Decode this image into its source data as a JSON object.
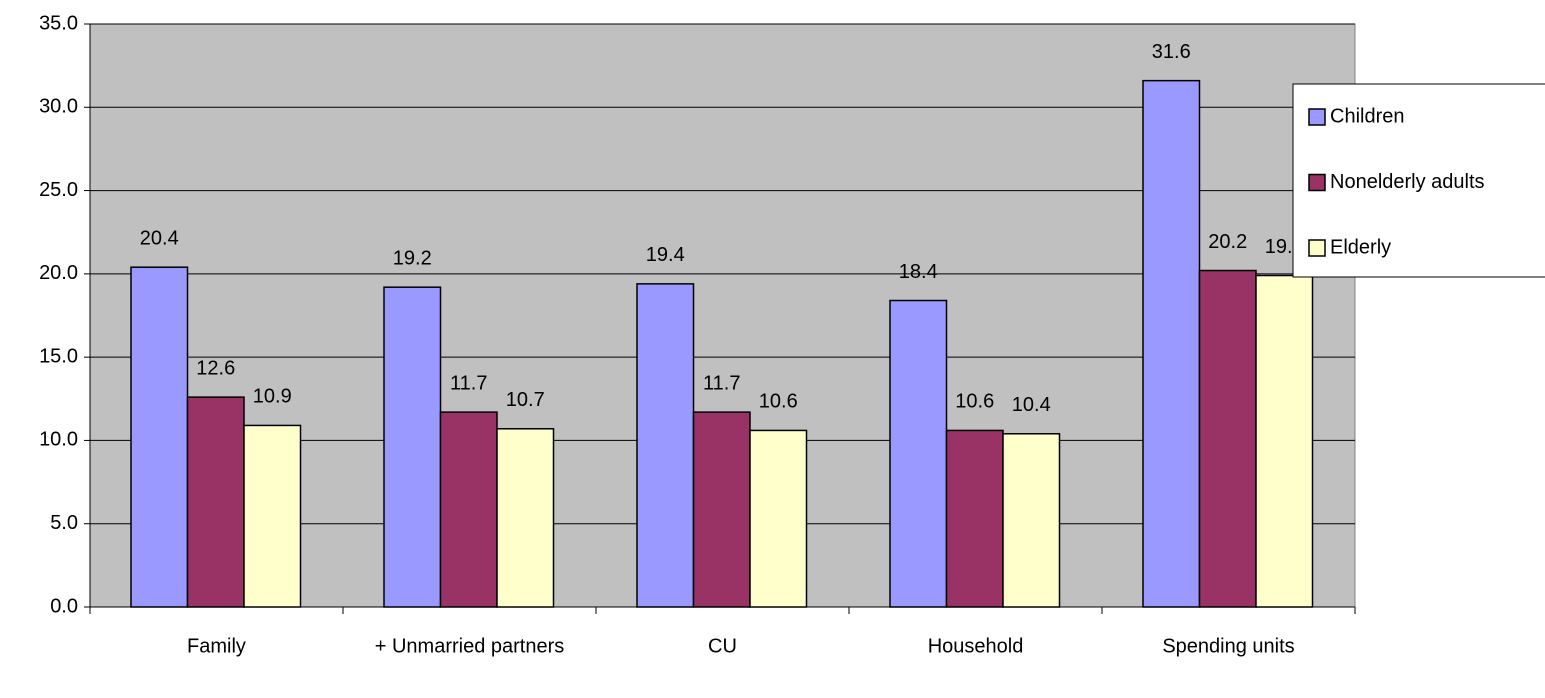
{
  "chart_data": {
    "type": "bar",
    "categories": [
      "Family",
      "+ Unmarried partners",
      "CU",
      "Household",
      "Spending units"
    ],
    "series": [
      {
        "name": "Children",
        "color": "#9999ff",
        "values": [
          20.4,
          19.2,
          19.4,
          18.4,
          31.6
        ]
      },
      {
        "name": "Nonelderly adults",
        "color": "#993366",
        "values": [
          12.6,
          11.7,
          11.7,
          10.6,
          20.2
        ]
      },
      {
        "name": "Elderly",
        "color": "#ffffcc",
        "values": [
          10.9,
          10.7,
          10.6,
          10.4,
          19.9
        ]
      }
    ],
    "ylim": [
      0,
      35
    ],
    "yticks": [
      {
        "value": 0,
        "label": "0.0"
      },
      {
        "value": 5,
        "label": "5.0"
      },
      {
        "value": 10,
        "label": "10.0"
      },
      {
        "value": 15,
        "label": "15.0"
      },
      {
        "value": 20,
        "label": "20.0"
      },
      {
        "value": 25,
        "label": "25.0"
      },
      {
        "value": 30,
        "label": "30.0"
      },
      {
        "value": 35,
        "label": "35.0"
      }
    ],
    "grid": true,
    "plot_background": "#c0c0c0",
    "legend": "right"
  }
}
